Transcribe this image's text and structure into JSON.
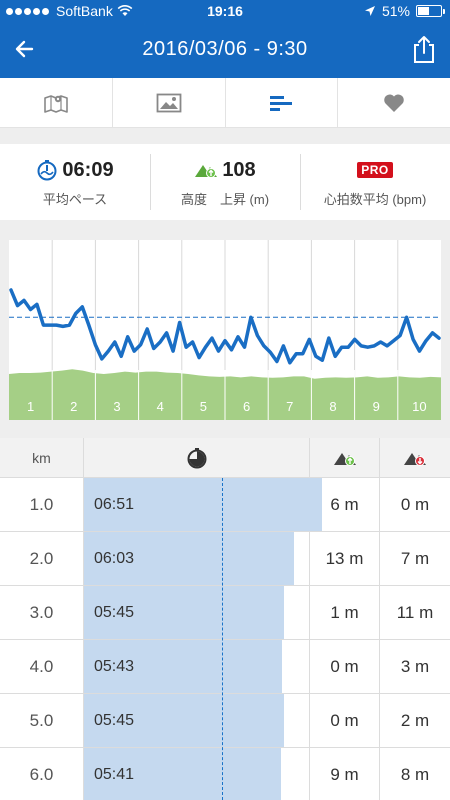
{
  "status_bar": {
    "carrier": "SoftBank",
    "time": "19:16",
    "battery": "51%",
    "battery_level": 0.51
  },
  "header": {
    "title": "2016/03/06 - 9:30"
  },
  "tabs": [
    {
      "icon": "map-icon"
    },
    {
      "icon": "photo-icon"
    },
    {
      "icon": "splits-icon",
      "active": true
    },
    {
      "icon": "heart-icon"
    }
  ],
  "stats": [
    {
      "icon": "pace-icon",
      "value": "06:09",
      "label": "平均ペース"
    },
    {
      "icon": "elevation-up-icon",
      "value": "108",
      "label": "高度　上昇 (m)"
    },
    {
      "badge": "PRO",
      "label": "心拍数平均 (bpm)"
    }
  ],
  "chart_data": {
    "type": "line",
    "x_labels": [
      "1",
      "2",
      "3",
      "4",
      "5",
      "6",
      "7",
      "8",
      "9",
      "10"
    ],
    "pace_line": [
      1.0,
      0.88,
      0.92,
      0.85,
      0.89,
      0.73,
      0.73,
      0.73,
      0.72,
      0.73,
      0.82,
      0.87,
      0.73,
      0.58,
      0.47,
      0.53,
      0.6,
      0.49,
      0.64,
      0.53,
      0.58,
      0.7,
      0.55,
      0.6,
      0.67,
      0.53,
      0.75,
      0.56,
      0.6,
      0.48,
      0.56,
      0.63,
      0.53,
      0.61,
      0.54,
      0.64,
      0.56,
      0.79,
      0.65,
      0.57,
      0.52,
      0.45,
      0.57,
      0.44,
      0.51,
      0.51,
      0.62,
      0.49,
      0.46,
      0.63,
      0.49,
      0.56,
      0.56,
      0.62,
      0.57,
      0.56,
      0.57,
      0.6,
      0.57,
      0.61,
      0.65,
      0.79,
      0.62,
      0.53,
      0.61,
      0.67,
      0.63
    ],
    "elevation_area": [
      0.5,
      0.52,
      0.52,
      0.53,
      0.55,
      0.57,
      0.6,
      0.57,
      0.52,
      0.5,
      0.52,
      0.55,
      0.53,
      0.55,
      0.55,
      0.53,
      0.52,
      0.5,
      0.47,
      0.45,
      0.44,
      0.45,
      0.43,
      0.45,
      0.43,
      0.42,
      0.43,
      0.45,
      0.45,
      0.4,
      0.42,
      0.43,
      0.42,
      0.43,
      0.45,
      0.42,
      0.43,
      0.45,
      0.43,
      0.42,
      0.44,
      0.43
    ],
    "average_pace_line": 0.79
  },
  "splits": {
    "columns": {
      "km": "km",
      "pace_icon": "stopwatch-icon",
      "up_icon": "elevation-up-icon",
      "down_icon": "elevation-down-icon"
    },
    "rows": [
      {
        "km": "1.0",
        "pace": "06:51",
        "pace_fraction": 0.68,
        "up": "6 m",
        "down": "0 m"
      },
      {
        "km": "2.0",
        "pace": "06:03",
        "pace_fraction": 0.6,
        "up": "13 m",
        "down": "7 m"
      },
      {
        "km": "3.0",
        "pace": "05:45",
        "pace_fraction": 0.57,
        "up": "1 m",
        "down": "11 m"
      },
      {
        "km": "4.0",
        "pace": "05:43",
        "pace_fraction": 0.566,
        "up": "0 m",
        "down": "3 m"
      },
      {
        "km": "5.0",
        "pace": "05:45",
        "pace_fraction": 0.57,
        "up": "0 m",
        "down": "2 m"
      },
      {
        "km": "6.0",
        "pace": "05:41",
        "pace_fraction": 0.563,
        "up": "9 m",
        "down": "8 m"
      }
    ],
    "average_pace_fraction": 0.553
  },
  "colors": {
    "brand": "#1569c0",
    "pace_line": "#1a6ec4",
    "elevation": "#a5cf86",
    "pace_bar": "#c5d9ef",
    "pro": "#d3101c"
  }
}
